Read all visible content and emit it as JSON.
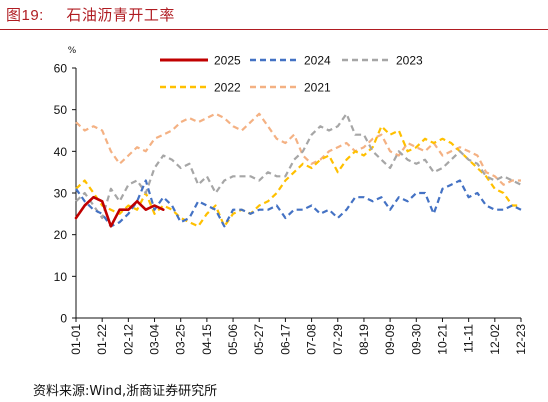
{
  "figure": {
    "label": "图19:",
    "title": "石油沥青开工率"
  },
  "source": "资料来源:Wind,浙商证券研究所",
  "chart_data": {
    "type": "line",
    "unit": "%",
    "ylim": [
      0,
      60
    ],
    "yticks": [
      0,
      10,
      20,
      30,
      40,
      50,
      60
    ],
    "xticks": [
      "01-01",
      "01-22",
      "02-12",
      "03-04",
      "03-25",
      "04-15",
      "05-06",
      "05-27",
      "06-17",
      "07-08",
      "07-29",
      "08-19",
      "09-09",
      "09-30",
      "10-21",
      "11-11",
      "12-02",
      "12-23"
    ],
    "x_points": 52,
    "grid": false,
    "legend_position": "top",
    "series": [
      {
        "name": "2025",
        "color": "#c00000",
        "dash": "solid",
        "width": 2.6,
        "values": [
          24,
          27,
          29,
          28,
          22,
          26,
          26,
          28,
          26,
          27,
          26
        ]
      },
      {
        "name": "2024",
        "color": "#4472c4",
        "dash": "dashed",
        "width": 2.2,
        "values": [
          31,
          28,
          26,
          25,
          22,
          23,
          25,
          28,
          33,
          26,
          29,
          27,
          23,
          24,
          28,
          27,
          26,
          22,
          26,
          26,
          25,
          26,
          26,
          27,
          24,
          26,
          26,
          27,
          25,
          26,
          24,
          26,
          29,
          29,
          28,
          29,
          26,
          29,
          28,
          30,
          30,
          25,
          31,
          32,
          33,
          29,
          30,
          27,
          26,
          26,
          27,
          26
        ]
      },
      {
        "name": "2023",
        "color": "#a6a6a6",
        "dash": "dashed",
        "width": 2.2,
        "values": [
          28,
          30,
          27,
          24,
          31,
          28,
          32,
          33,
          30,
          36,
          39,
          38,
          36,
          37,
          32,
          34,
          30,
          33,
          34,
          34,
          34,
          33,
          35,
          34,
          34,
          38,
          40,
          44,
          46,
          45,
          46,
          49,
          44,
          44,
          40,
          38,
          36,
          40,
          38,
          37,
          38,
          35,
          36,
          38,
          40,
          38,
          37,
          34,
          33,
          34,
          33,
          32
        ]
      },
      {
        "name": "2022",
        "color": "#ffc000",
        "dash": "dashed",
        "width": 2.2,
        "values": [
          31,
          33,
          30,
          27,
          26,
          25,
          27,
          26,
          30,
          25,
          27,
          26,
          24,
          23,
          22,
          25,
          27,
          22,
          25,
          26,
          25,
          27,
          28,
          30,
          33,
          35,
          37,
          36,
          38,
          39,
          35,
          38,
          40,
          39,
          41,
          46,
          44,
          45,
          40,
          41,
          43,
          42,
          43,
          42,
          40,
          38,
          36,
          34,
          31,
          30,
          27,
          27
        ]
      },
      {
        "name": "2021",
        "color": "#f4b183",
        "dash": "dashed",
        "width": 2.2,
        "values": [
          47,
          45,
          46,
          45,
          40,
          37,
          39,
          41,
          40,
          43,
          44,
          45,
          47,
          48,
          47,
          48,
          49,
          48,
          46,
          45,
          47,
          49,
          46,
          43,
          42,
          44,
          39,
          37,
          38,
          40,
          41,
          42,
          40,
          41,
          43,
          44,
          40,
          39,
          42,
          41,
          40,
          42,
          39,
          40,
          41,
          40,
          39,
          35,
          34,
          32,
          33,
          33
        ]
      }
    ]
  }
}
